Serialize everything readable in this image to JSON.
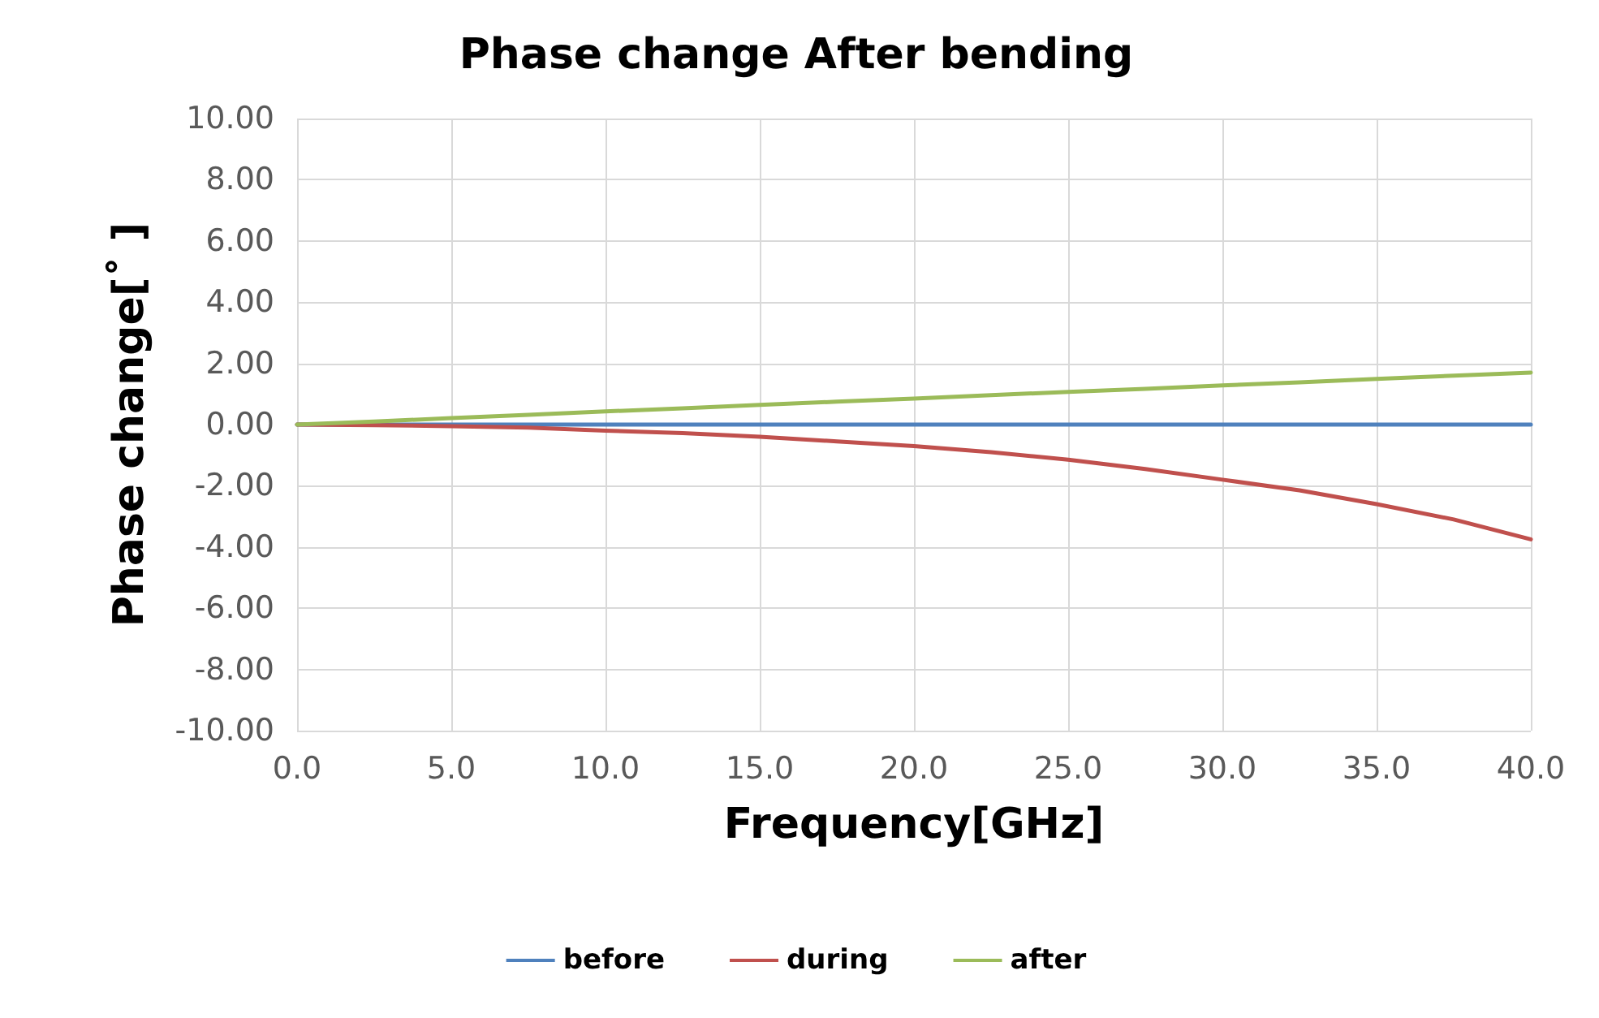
{
  "chart_data": {
    "type": "line",
    "title": "Phase change After bending",
    "xlabel": "Frequency[GHz]",
    "ylabel": "Phase change[˚ ]",
    "x": [
      0,
      2.5,
      5,
      7.5,
      10,
      12.5,
      15,
      17.5,
      20,
      22.5,
      25,
      27.5,
      30,
      32.5,
      35,
      37.5,
      40
    ],
    "series": [
      {
        "name": "before",
        "color": "#4f81bd",
        "values": [
          0,
          0,
          0,
          0,
          0,
          0,
          0,
          0,
          0,
          0,
          0,
          0,
          0,
          0,
          0,
          0,
          0
        ]
      },
      {
        "name": "during",
        "color": "#c0504d",
        "values": [
          0,
          -0.02,
          -0.05,
          -0.1,
          -0.2,
          -0.28,
          -0.4,
          -0.55,
          -0.7,
          -0.9,
          -1.15,
          -1.45,
          -1.8,
          -2.15,
          -2.6,
          -3.1,
          -3.75
        ]
      },
      {
        "name": "after",
        "color": "#9bbb59",
        "values": [
          0,
          0.1,
          0.21,
          0.32,
          0.43,
          0.53,
          0.64,
          0.75,
          0.85,
          0.96,
          1.07,
          1.17,
          1.28,
          1.38,
          1.49,
          1.6,
          1.7
        ]
      }
    ],
    "xlim": [
      0,
      40
    ],
    "xticks": [
      {
        "value": 0,
        "label": "0.0"
      },
      {
        "value": 5,
        "label": "5.0"
      },
      {
        "value": 10,
        "label": "10.0"
      },
      {
        "value": 15,
        "label": "15.0"
      },
      {
        "value": 20,
        "label": "20.0"
      },
      {
        "value": 25,
        "label": "25.0"
      },
      {
        "value": 30,
        "label": "30.0"
      },
      {
        "value": 35,
        "label": "35.0"
      },
      {
        "value": 40,
        "label": "40.0"
      }
    ],
    "ylim": [
      -10,
      10
    ],
    "yticks": [
      {
        "value": -10,
        "label": "-10.00"
      },
      {
        "value": -8,
        "label": "-8.00"
      },
      {
        "value": -6,
        "label": "-6.00"
      },
      {
        "value": -4,
        "label": "-4.00"
      },
      {
        "value": -2,
        "label": "-2.00"
      },
      {
        "value": 0,
        "label": "0.00"
      },
      {
        "value": 2,
        "label": "2.00"
      },
      {
        "value": 4,
        "label": "4.00"
      },
      {
        "value": 6,
        "label": "6.00"
      },
      {
        "value": 8,
        "label": "8.00"
      },
      {
        "value": 10,
        "label": "10.00"
      }
    ],
    "grid": true,
    "legend": "bottom",
    "marker": "none",
    "line_style": "solid"
  }
}
